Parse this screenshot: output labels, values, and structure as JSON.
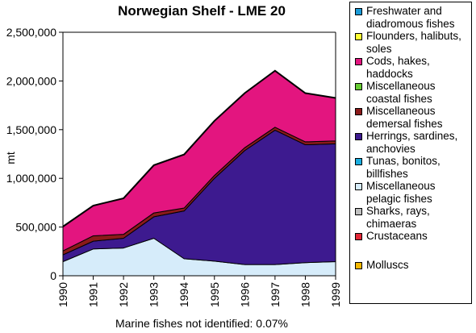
{
  "chart_data": {
    "type": "area",
    "stacked": true,
    "title": "Norwegian Shelf - LME 20",
    "xlabel": "",
    "ylabel": "mt",
    "ylim": [
      0,
      2500000
    ],
    "yticks": [
      0,
      500000,
      1000000,
      1500000,
      2000000,
      2500000
    ],
    "ytick_labels": [
      "0",
      "500,000",
      "1,000,000",
      "1,500,000",
      "2,000,000",
      "2,500,000"
    ],
    "x": [
      "1990",
      "1991",
      "1992",
      "1993",
      "1994",
      "1995",
      "1996",
      "1997",
      "1998",
      "1999"
    ],
    "grid": false,
    "legend_position": "right",
    "series": [
      {
        "name": "Freshwater and diadromous fishes",
        "color": "#1A9BD8",
        "values": [
          0,
          0,
          0,
          0,
          0,
          0,
          0,
          0,
          0,
          0
        ]
      },
      {
        "name": "Flounders, halibuts, soles",
        "color": "#FFFF33",
        "values": [
          0,
          0,
          0,
          0,
          0,
          0,
          0,
          0,
          0,
          0
        ]
      },
      {
        "name": "Cods, hakes, haddocks",
        "color": "#E3157F",
        "values": [
          250000,
          310000,
          370000,
          490000,
          550000,
          560000,
          560000,
          580000,
          500000,
          440000
        ]
      },
      {
        "name": "Miscellaneous coastal fishes",
        "color": "#66CC33",
        "values": [
          0,
          0,
          0,
          0,
          0,
          0,
          0,
          0,
          0,
          0
        ]
      },
      {
        "name": "Miscellaneous demersal fishes",
        "color": "#8B1A1A",
        "values": [
          40000,
          55000,
          40000,
          40000,
          30000,
          30000,
          30000,
          30000,
          30000,
          30000
        ]
      },
      {
        "name": "Herrings, sardines, anchovies",
        "color": "#3D1A8F",
        "values": [
          70000,
          80000,
          100000,
          220000,
          490000,
          850000,
          1170000,
          1380000,
          1210000,
          1210000
        ]
      },
      {
        "name": "Tunas, bonitos, billfishes",
        "color": "#1AAEE0",
        "values": [
          0,
          0,
          0,
          0,
          0,
          0,
          0,
          0,
          0,
          0
        ]
      },
      {
        "name": "Miscellaneous pelagic fishes",
        "color": "#D6ECFA",
        "values": [
          145000,
          275000,
          285000,
          385000,
          175000,
          150000,
          115000,
          115000,
          135000,
          145000
        ]
      },
      {
        "name": "Sharks, rays, chimaeras",
        "color": "#C0C0C0",
        "values": [
          0,
          0,
          0,
          0,
          0,
          0,
          0,
          0,
          0,
          0
        ]
      },
      {
        "name": "Crustaceans",
        "color": "#E32636",
        "values": [
          0,
          0,
          0,
          0,
          0,
          0,
          0,
          0,
          0,
          0
        ]
      },
      {
        "name": "Molluscs",
        "color": "#F5B800",
        "values": [
          0,
          0,
          0,
          0,
          0,
          0,
          0,
          0,
          0,
          0
        ]
      }
    ],
    "footnote": "Marine fishes not identified: 0.07%"
  }
}
